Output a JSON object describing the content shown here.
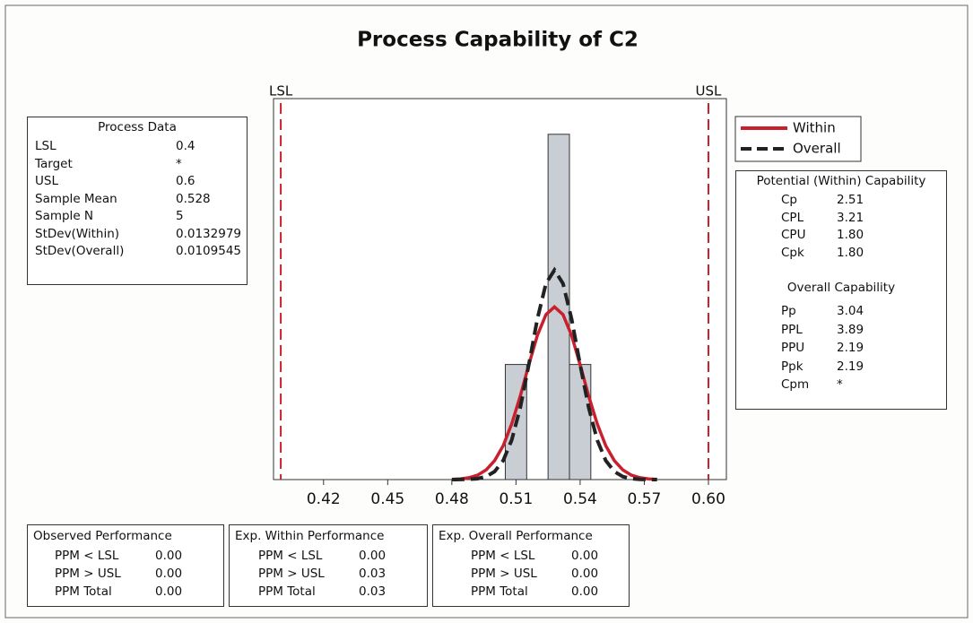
{
  "chart_data": {
    "type": "capability",
    "title": "Process Capability of C2",
    "xlim": [
      0.3966,
      0.6084
    ],
    "ylim": [
      0,
      3.31
    ],
    "xticks": [
      0.42,
      0.45,
      0.48,
      0.51,
      0.54,
      0.57,
      {
        "value": 0.6,
        "label": "0.60"
      }
    ],
    "bins": [
      0.505,
      0.515,
      0.525,
      0.535,
      0.545
    ],
    "counts": [
      1,
      0,
      3,
      1
    ],
    "bar_color": "#c9ced4",
    "reference_lines": [
      {
        "label": "LSL",
        "value": 0.4,
        "color": "#c8202c"
      },
      {
        "label": "USL",
        "value": 0.6,
        "color": "#c8202c"
      }
    ],
    "series": [
      {
        "name": "Within",
        "color": "#c8202c",
        "dashed": false,
        "x": [
          0.48,
          0.484,
          0.488,
          0.492,
          0.496,
          0.5,
          0.504,
          0.508,
          0.512,
          0.516,
          0.52,
          0.524,
          0.528,
          0.532,
          0.536,
          0.54,
          0.544,
          0.548,
          0.552,
          0.556,
          0.56,
          0.564,
          0.568,
          0.572,
          0.576
        ],
        "values": [
          0.002,
          0.006,
          0.016,
          0.038,
          0.083,
          0.164,
          0.294,
          0.484,
          0.727,
          0.998,
          1.252,
          1.434,
          1.5,
          1.434,
          1.252,
          0.998,
          0.727,
          0.484,
          0.294,
          0.164,
          0.083,
          0.038,
          0.016,
          0.006,
          0.002
        ]
      },
      {
        "name": "Overall",
        "color": "#222222",
        "dashed": true,
        "x": [
          0.48,
          0.484,
          0.488,
          0.492,
          0.496,
          0.5,
          0.504,
          0.508,
          0.512,
          0.516,
          0.52,
          0.524,
          0.528,
          0.532,
          0.536,
          0.54,
          0.544,
          0.548,
          0.552,
          0.556,
          0.56,
          0.564,
          0.568,
          0.572,
          0.576
        ],
        "values": [
          0.0001,
          0.001,
          0.002,
          0.008,
          0.026,
          0.069,
          0.165,
          0.343,
          0.627,
          0.999,
          1.395,
          1.703,
          1.82,
          1.703,
          1.395,
          0.999,
          0.627,
          0.343,
          0.165,
          0.069,
          0.026,
          0.008,
          0.002,
          0.001,
          0.0001
        ]
      }
    ]
  },
  "process_data": {
    "title": "Process Data",
    "rows": [
      [
        "LSL",
        "0.4"
      ],
      [
        "Target",
        "*"
      ],
      [
        "USL",
        "0.6"
      ],
      [
        "Sample Mean",
        "0.528"
      ],
      [
        "Sample N",
        "5"
      ],
      [
        "StDev(Within)",
        "0.0132979"
      ],
      [
        "StDev(Overall)",
        "0.0109545"
      ]
    ]
  },
  "potential_capability": {
    "title": "Potential (Within) Capability",
    "rows": [
      [
        "Cp",
        "2.51"
      ],
      [
        "CPL",
        "3.21"
      ],
      [
        "CPU",
        "1.80"
      ],
      [
        "Cpk",
        "1.80"
      ]
    ]
  },
  "overall_capability": {
    "title": "Overall Capability",
    "rows": [
      [
        "Pp",
        "3.04"
      ],
      [
        "PPL",
        "3.89"
      ],
      [
        "PPU",
        "2.19"
      ],
      [
        "Ppk",
        "2.19"
      ],
      [
        "Cpm",
        "*"
      ]
    ]
  },
  "observed_performance": {
    "title": "Observed Performance",
    "rows": [
      [
        "PPM < LSL",
        "0.00"
      ],
      [
        "PPM > USL",
        "0.00"
      ],
      [
        "PPM Total",
        "0.00"
      ]
    ]
  },
  "exp_within_performance": {
    "title": "Exp. Within Performance",
    "rows": [
      [
        "PPM < LSL",
        "0.00"
      ],
      [
        "PPM > USL",
        "0.03"
      ],
      [
        "PPM Total",
        "0.03"
      ]
    ]
  },
  "exp_overall_performance": {
    "title": "Exp. Overall Performance",
    "rows": [
      [
        "PPM < LSL",
        "0.00"
      ],
      [
        "PPM > USL",
        "0.00"
      ],
      [
        "PPM Total",
        "0.00"
      ]
    ]
  }
}
